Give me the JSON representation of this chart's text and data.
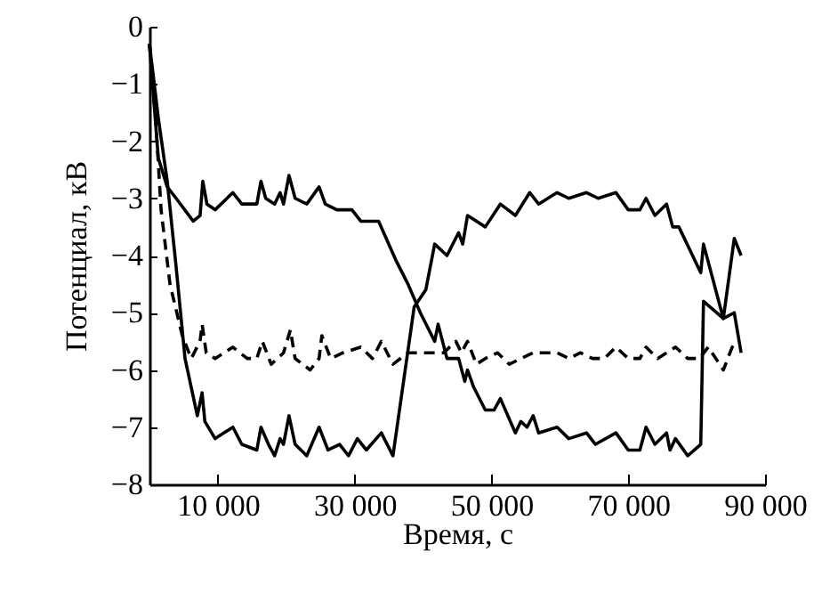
{
  "chart_data": {
    "type": "line",
    "xlabel": "Время, с",
    "ylabel": "Потенциал, кВ",
    "xlim": [
      0,
      90000
    ],
    "ylim": [
      -8,
      0
    ],
    "xticks": [
      {
        "value": 10000,
        "label": "10 000"
      },
      {
        "value": 30000,
        "label": "30 000"
      },
      {
        "value": 50000,
        "label": "50 000"
      },
      {
        "value": 70000,
        "label": "70 000"
      },
      {
        "value": 90000,
        "label": "90 000"
      }
    ],
    "yticks": [
      0,
      {
        "value": -1,
        "label": "−1"
      },
      {
        "value": -2,
        "label": "−2"
      },
      {
        "value": -3,
        "label": "−3"
      },
      {
        "value": -4,
        "label": "−4"
      },
      {
        "value": -5,
        "label": "−5"
      },
      {
        "value": -6,
        "label": "−6"
      },
      {
        "value": -7,
        "label": "−7"
      },
      {
        "value": -8,
        "label": "−8"
      }
    ],
    "grid": false,
    "marker": "none",
    "series": [
      {
        "color": "#000000",
        "line_style": "solid",
        "x": [
          0,
          1300,
          2600,
          3900,
          6400,
          7400,
          7800,
          8400,
          9600,
          12200,
          13500,
          15700,
          16300,
          17000,
          18300,
          19100,
          19600,
          20400,
          21300,
          23000,
          24800,
          25700,
          27400,
          29600,
          30900,
          33500,
          36100,
          37800,
          39600,
          41700,
          42200,
          43500,
          45200,
          46100,
          46500,
          47400,
          49100,
          50400,
          51300,
          53500,
          54300,
          55200,
          56100,
          56900,
          59600,
          61300,
          63900,
          65200,
          68200,
          70000,
          71700,
          72600,
          73900,
          75600,
          76100,
          76900,
          78700,
          80600,
          81000,
          83900,
          85500,
          86500
        ],
        "values": [
          -0.3,
          -2.3,
          -2.8,
          -3.0,
          -3.4,
          -3.3,
          -2.7,
          -3.1,
          -3.2,
          -2.9,
          -3.1,
          -3.1,
          -2.7,
          -3.0,
          -3.1,
          -2.9,
          -3.1,
          -2.6,
          -3.0,
          -3.1,
          -2.8,
          -3.1,
          -3.2,
          -3.2,
          -3.4,
          -3.4,
          -4.1,
          -4.5,
          -5.0,
          -5.5,
          -5.2,
          -5.8,
          -5.8,
          -6.2,
          -6.0,
          -6.3,
          -6.7,
          -6.7,
          -6.5,
          -7.1,
          -6.9,
          -7.0,
          -6.8,
          -7.1,
          -7.0,
          -7.2,
          -7.1,
          -7.3,
          -7.1,
          -7.4,
          -7.4,
          -7.0,
          -7.3,
          -7.1,
          -7.4,
          -7.2,
          -7.5,
          -7.3,
          -4.8,
          -5.1,
          -5.0,
          -5.7
        ]
      },
      {
        "color": "#000000",
        "line_style": "solid",
        "x": [
          0,
          1300,
          2600,
          3900,
          5200,
          7000,
          7700,
          8100,
          9600,
          12200,
          13500,
          15700,
          16300,
          17400,
          18300,
          19100,
          19600,
          20400,
          21300,
          23000,
          24800,
          26100,
          27800,
          29100,
          30400,
          31700,
          33900,
          35600,
          38700,
          40400,
          41700,
          43500,
          45200,
          45800,
          46500,
          49100,
          51300,
          53500,
          55600,
          56900,
          59600,
          61300,
          63900,
          65600,
          68200,
          70000,
          71700,
          72600,
          73900,
          75600,
          76500,
          77400,
          80600,
          81000,
          83900,
          85500,
          86500
        ],
        "values": [
          -0.3,
          -1.6,
          -2.7,
          -4.2,
          -5.8,
          -6.8,
          -6.4,
          -6.9,
          -7.2,
          -7.0,
          -7.3,
          -7.4,
          -7.0,
          -7.3,
          -7.5,
          -7.2,
          -7.3,
          -6.8,
          -7.3,
          -7.5,
          -7.0,
          -7.4,
          -7.3,
          -7.5,
          -7.2,
          -7.4,
          -7.1,
          -7.5,
          -4.9,
          -4.6,
          -3.8,
          -4.0,
          -3.6,
          -3.8,
          -3.3,
          -3.5,
          -3.1,
          -3.3,
          -2.9,
          -3.1,
          -2.9,
          -3.0,
          -2.9,
          -3.0,
          -2.9,
          -3.2,
          -3.2,
          -3.0,
          -3.3,
          -3.1,
          -3.5,
          -3.5,
          -4.3,
          -3.8,
          -5.1,
          -3.7,
          -4.0
        ]
      },
      {
        "color": "#000000",
        "line_style": "dashed",
        "x": [
          0,
          900,
          1700,
          3000,
          4800,
          6100,
          7400,
          7700,
          8300,
          9600,
          10900,
          12200,
          14300,
          15700,
          16500,
          17800,
          18700,
          19600,
          20600,
          21300,
          23500,
          24800,
          25200,
          26500,
          28300,
          30900,
          32600,
          33900,
          35600,
          37800,
          43000,
          44800,
          45600,
          46500,
          47800,
          49100,
          50900,
          52600,
          54300,
          56100,
          57800,
          59600,
          61300,
          63000,
          64800,
          66500,
          68200,
          70000,
          71700,
          72600,
          74300,
          75600,
          76900,
          78700,
          80400,
          81700,
          83900,
          85200,
          86100
        ],
        "values": [
          -0.3,
          -1.6,
          -3.2,
          -4.5,
          -5.4,
          -5.8,
          -5.5,
          -5.2,
          -5.7,
          -5.8,
          -5.7,
          -5.6,
          -5.8,
          -5.8,
          -5.5,
          -5.9,
          -5.8,
          -5.7,
          -5.3,
          -5.8,
          -6.0,
          -5.8,
          -5.4,
          -5.8,
          -5.7,
          -5.6,
          -5.8,
          -5.5,
          -5.9,
          -5.7,
          -5.7,
          -5.5,
          -5.7,
          -5.5,
          -5.9,
          -5.8,
          -5.7,
          -5.9,
          -5.8,
          -5.7,
          -5.7,
          -5.7,
          -5.8,
          -5.7,
          -5.8,
          -5.8,
          -5.6,
          -5.8,
          -5.8,
          -5.6,
          -5.8,
          -5.7,
          -5.6,
          -5.8,
          -5.8,
          -5.6,
          -6.0,
          -5.6,
          -5.7
        ]
      }
    ]
  }
}
